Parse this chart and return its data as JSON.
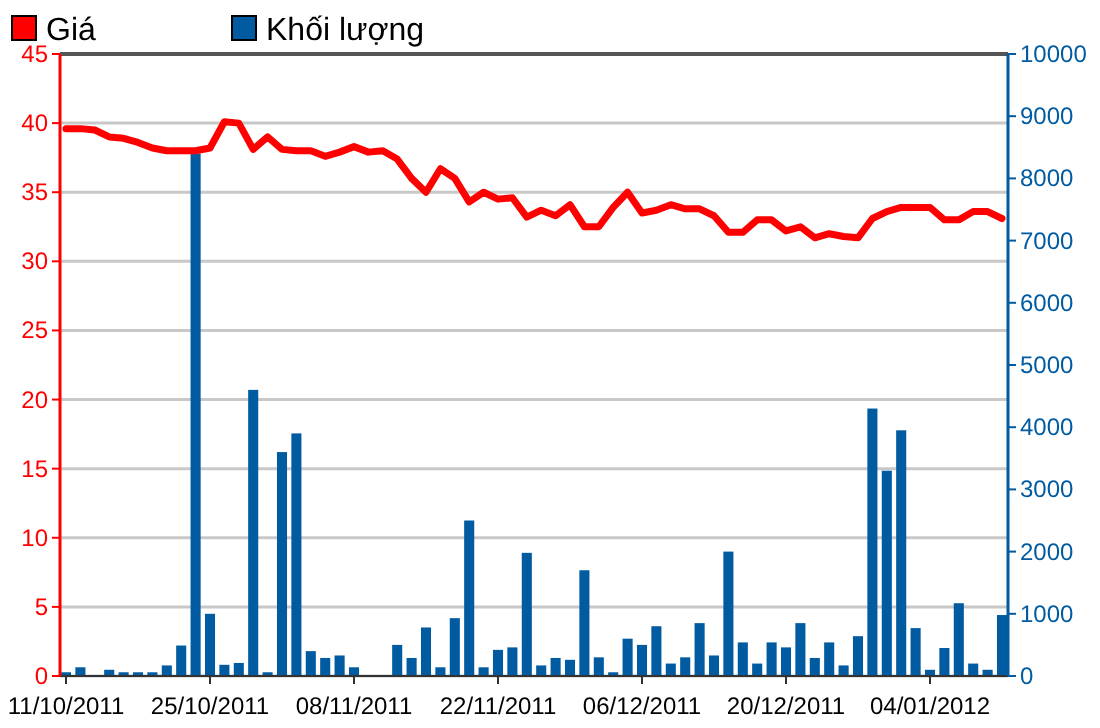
{
  "chart_data": {
    "type": "bar",
    "categories": [
      "11/10/2011",
      null,
      null,
      null,
      null,
      null,
      null,
      null,
      null,
      null,
      "25/10/2011",
      null,
      null,
      null,
      null,
      null,
      null,
      null,
      null,
      null,
      "08/11/2011",
      null,
      null,
      null,
      null,
      null,
      null,
      null,
      null,
      null,
      "22/11/2011",
      null,
      null,
      null,
      null,
      null,
      null,
      null,
      null,
      null,
      "06/12/2011",
      null,
      null,
      null,
      null,
      null,
      null,
      null,
      null,
      null,
      "20/12/2011",
      null,
      null,
      null,
      null,
      null,
      null,
      null,
      null,
      null,
      "04/01/2012",
      null,
      null,
      null,
      null,
      null
    ],
    "series": [
      {
        "name": "Khối lượng",
        "axis": "y2",
        "color": "#005ba1",
        "values": [
          60,
          140,
          0,
          100,
          60,
          60,
          60,
          170,
          490,
          8400,
          1000,
          180,
          210,
          4600,
          60,
          3600,
          3900,
          400,
          290,
          330,
          140,
          0,
          0,
          500,
          290,
          780,
          140,
          930,
          2500,
          140,
          420,
          460,
          1980,
          170,
          290,
          260,
          1700,
          300,
          60,
          600,
          500,
          800,
          200,
          300,
          850,
          330,
          2000,
          540,
          200,
          540,
          460,
          850,
          290,
          540,
          170,
          640,
          4300,
          3300,
          3950,
          770,
          100,
          450,
          1170,
          200,
          100,
          980
        ]
      },
      {
        "name": "Giá",
        "type": "line",
        "color": "#ff0000",
        "values": [
          39.6,
          39.6,
          39.5,
          39.0,
          38.9,
          38.6,
          38.2,
          38.0,
          38.0,
          38.0,
          38.2,
          40.1,
          40.0,
          38.1,
          39.0,
          38.1,
          38.0,
          38.0,
          37.6,
          37.9,
          38.3,
          37.9,
          38.0,
          37.4,
          36.0,
          35.0,
          36.7,
          36.0,
          34.3,
          35.0,
          34.5,
          34.6,
          33.2,
          33.7,
          33.3,
          34.1,
          32.5,
          32.5,
          33.9,
          35.0,
          33.5,
          33.7,
          34.1,
          33.8,
          33.8,
          33.3,
          32.1,
          32.1,
          33.0,
          33.0,
          32.2,
          32.5,
          31.7,
          32.0,
          31.8,
          31.7,
          33.1,
          33.6,
          33.9,
          33.9,
          33.9,
          33.0,
          33.0,
          33.6,
          33.6,
          33.1
        ]
      }
    ],
    "ylim": [
      0,
      45
    ],
    "yticks": [
      0,
      5,
      10,
      15,
      20,
      25,
      30,
      35,
      40,
      45
    ],
    "y2lim": [
      0,
      10000
    ],
    "y2ticks": [
      0,
      1000,
      2000,
      3000,
      4000,
      5000,
      6000,
      7000,
      8000,
      9000,
      10000
    ],
    "grid": "y",
    "legend": "top left",
    "marker": "none",
    "line_style": "solid"
  }
}
